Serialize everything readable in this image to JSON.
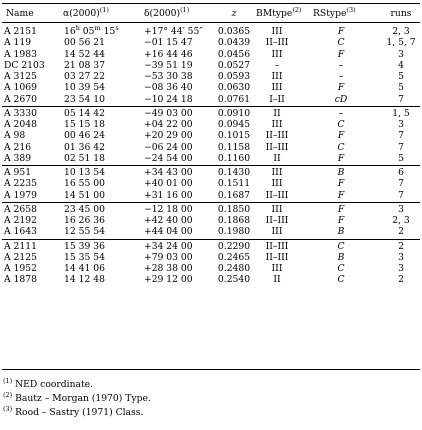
{
  "table": {
    "headers": {
      "name": "Name",
      "ra": "α(2000)",
      "ra_note": "(1)",
      "dec": "δ(2000)",
      "dec_note": "(1)",
      "z": "z",
      "bm": "BMtype",
      "bm_note": "(2)",
      "rs": "RStype",
      "rs_note": "(3)",
      "runs": "runs"
    },
    "groups": [
      [
        {
          "name": "A 2151",
          "ra": "16h 05m 15s",
          "dec": "+17° 44′ 55″",
          "z": "0.0365",
          "bm": "III",
          "rs": "F",
          "runs": "2, 3"
        },
        {
          "name": "A 119",
          "ra": "00 56 21",
          "dec": "−01 15 47",
          "z": "0.0439",
          "bm": "II–III",
          "rs": "C",
          "runs": "1, 5, 7"
        },
        {
          "name": "A 1983",
          "ra": "14 52 44",
          "dec": "+16 44 46",
          "z": "0.0456",
          "bm": "III",
          "rs": "F",
          "runs": "3"
        },
        {
          "name": "DC 2103",
          "ra": "21 08 37",
          "dec": "−39 51 19",
          "z": "0.0527",
          "bm": "–",
          "rs": "–",
          "runs": "4"
        },
        {
          "name": "A 3125",
          "ra": "03 27 22",
          "dec": "−53 30 38",
          "z": "0.0593",
          "bm": "III",
          "rs": "–",
          "runs": "5"
        },
        {
          "name": "A 1069",
          "ra": "10 39 54",
          "dec": "−08 36 40",
          "z": "0.0630",
          "bm": "III",
          "rs": "F",
          "runs": "5"
        },
        {
          "name": "A 2670",
          "ra": "23 54 10",
          "dec": "−10 24 18",
          "z": "0.0761",
          "bm": "I–II",
          "rs": "cD",
          "runs": "7"
        }
      ],
      [
        {
          "name": "A 3330",
          "ra": "05 14 42",
          "dec": "−49 03 00",
          "z": "0.0910",
          "bm": "II",
          "rs": "–",
          "runs": "1, 5"
        },
        {
          "name": "A 2048",
          "ra": "15 15 18",
          "dec": "+04 22 00",
          "z": "0.0945",
          "bm": "III",
          "rs": "C",
          "runs": "3"
        },
        {
          "name": "A 98",
          "ra": "00 46 24",
          "dec": "+20 29 00",
          "z": "0.1015",
          "bm": "II–III",
          "rs": "F",
          "runs": "7"
        },
        {
          "name": "A 216",
          "ra": "01 36 42",
          "dec": "−06 24 00",
          "z": "0.1158",
          "bm": "II–III",
          "rs": "C",
          "runs": "7"
        },
        {
          "name": "A 389",
          "ra": "02 51 18",
          "dec": "−24 54 00",
          "z": "0.1160",
          "bm": "II",
          "rs": "F",
          "runs": "5"
        }
      ],
      [
        {
          "name": "A 951",
          "ra": "10 13 54",
          "dec": "+34 43 00",
          "z": "0.1430",
          "bm": "III",
          "rs": "B",
          "runs": "6"
        },
        {
          "name": "A 2235",
          "ra": "16 55 00",
          "dec": "+40 01 00",
          "z": "0.1511",
          "bm": "III",
          "rs": "F",
          "runs": "7"
        },
        {
          "name": "A 1979",
          "ra": "14 51 00",
          "dec": "+31 16 00",
          "z": "0.1687",
          "bm": "II–III",
          "rs": "F",
          "runs": "7"
        }
      ],
      [
        {
          "name": "A 2658",
          "ra": "23 45 00",
          "dec": "−12 18 00",
          "z": "0.1850",
          "bm": "III",
          "rs": "F",
          "runs": "3"
        },
        {
          "name": "A 2192",
          "ra": "16 26 36",
          "dec": "+42 40 00",
          "z": "0.1868",
          "bm": "II–III",
          "rs": "F",
          "runs": "2, 3"
        },
        {
          "name": "A 1643",
          "ra": "12 55 54",
          "dec": "+44 04 00",
          "z": "0.1980",
          "bm": "III",
          "rs": "B",
          "runs": "2"
        }
      ],
      [
        {
          "name": "A 2111",
          "ra": "15 39 36",
          "dec": "+34 24 00",
          "z": "0.2290",
          "bm": "II–III",
          "rs": "C",
          "runs": "2"
        },
        {
          "name": "A 2125",
          "ra": "15 35 54",
          "dec": "+79 03 00",
          "z": "0.2465",
          "bm": "II–III",
          "rs": "B",
          "runs": "3"
        },
        {
          "name": "A 1952",
          "ra": "14 41 06",
          "dec": "+28 38 00",
          "z": "0.2480",
          "bm": "III",
          "rs": "C",
          "runs": "3"
        },
        {
          "name": "A 1878",
          "ra": "14 12 48",
          "dec": "+29 12 00",
          "z": "0.2540",
          "bm": "II",
          "rs": "C",
          "runs": "2"
        }
      ]
    ]
  },
  "footnotes": [
    {
      "mark": "(1)",
      "text": "NED coordinate."
    },
    {
      "mark": "(2)",
      "text": "Bautz – Morgan (1970) Type."
    },
    {
      "mark": "(3)",
      "text": "Rood – Sastry (1971) Class."
    }
  ]
}
